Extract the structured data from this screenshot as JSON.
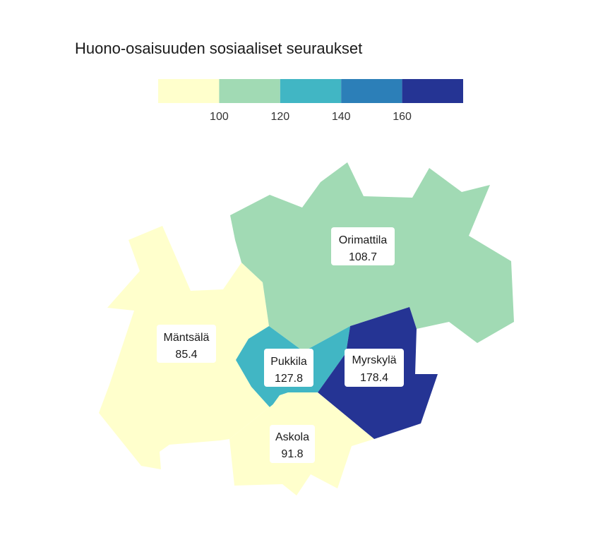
{
  "title": "Huono-osaisuuden sosiaaliset seuraukset",
  "legend": {
    "breaks": [
      100,
      120,
      140,
      160
    ],
    "colors": [
      "#ffffcc",
      "#a1dab4",
      "#41b6c4",
      "#2c7fb8",
      "#253494"
    ],
    "tick_labels": [
      "100",
      "120",
      "140",
      "160"
    ]
  },
  "regions": [
    {
      "id": "orimattila",
      "name": "Orimattila",
      "value_label": "108.7",
      "value": 108.7,
      "fill": "#a1dab4"
    },
    {
      "id": "mantsala",
      "name": "Mäntsälä",
      "value_label": "85.4",
      "value": 85.4,
      "fill": "#ffffcc"
    },
    {
      "id": "pukkila",
      "name": "Pukkila",
      "value_label": "127.8",
      "value": 127.8,
      "fill": "#41b6c4"
    },
    {
      "id": "myrskyla",
      "name": "Myrskylä",
      "value_label": "178.4",
      "value": 178.4,
      "fill": "#253494"
    },
    {
      "id": "askola",
      "name": "Askola",
      "value_label": "91.8",
      "value": 91.8,
      "fill": "#ffffcc"
    }
  ]
}
